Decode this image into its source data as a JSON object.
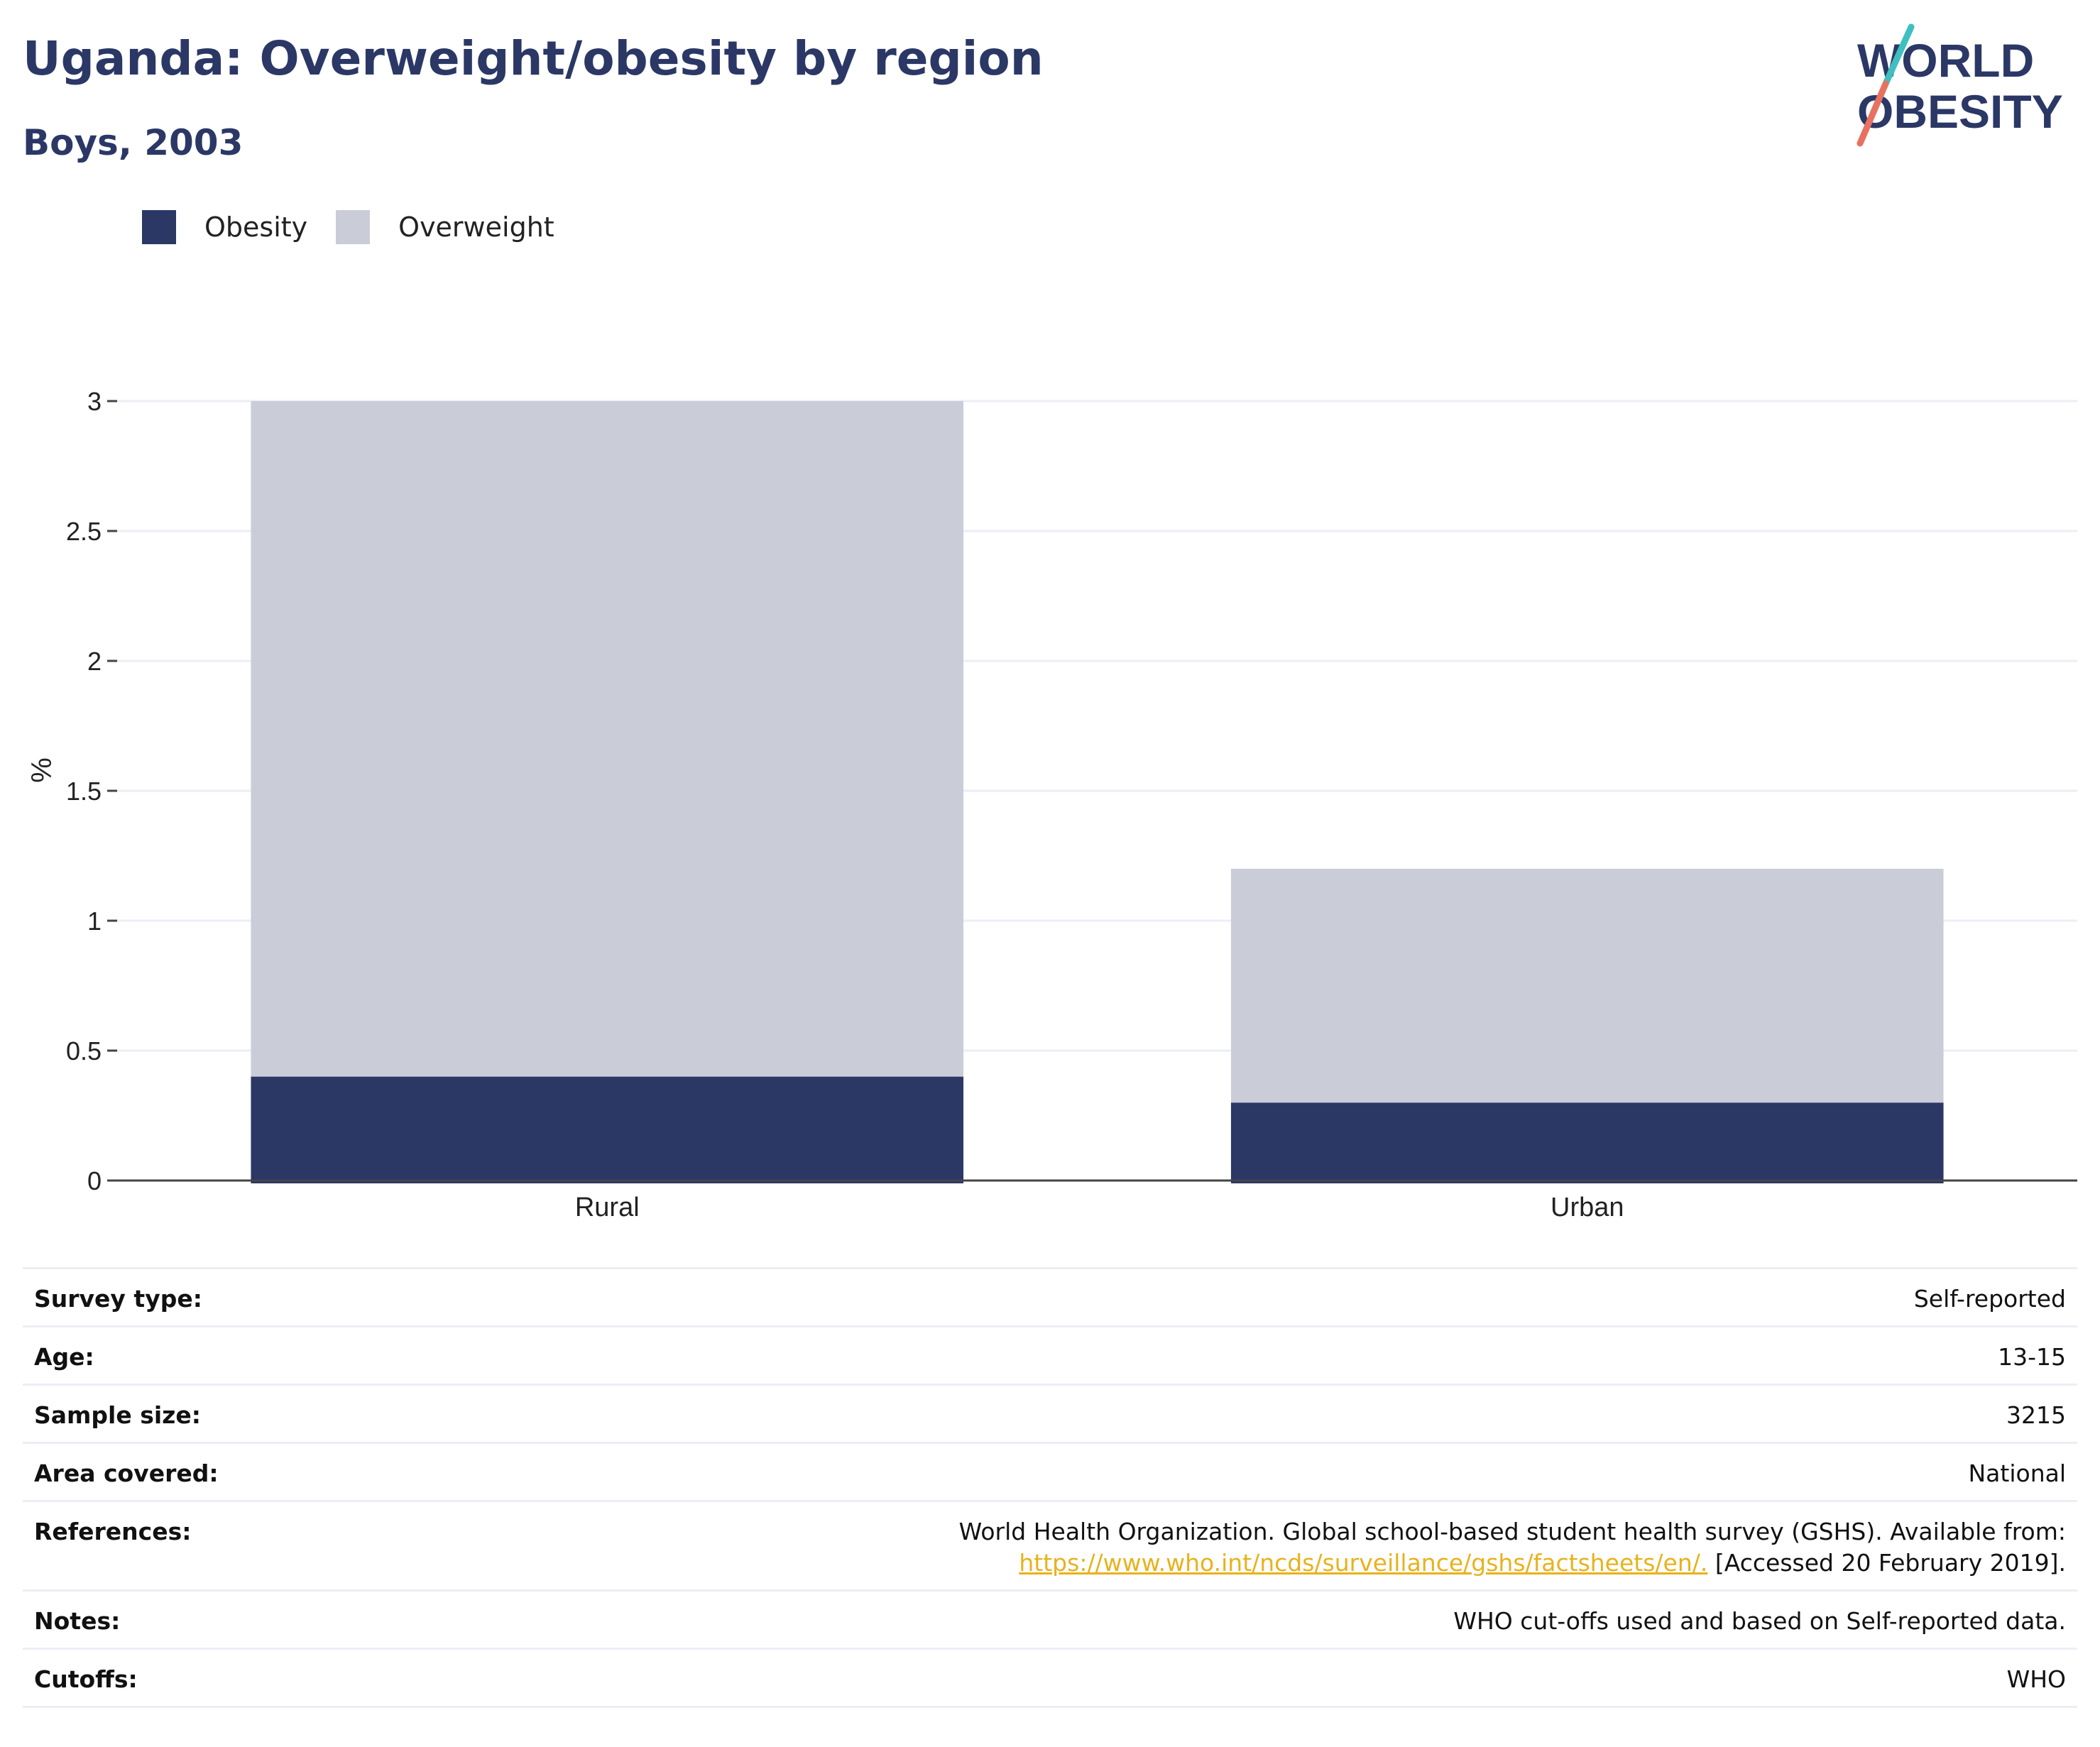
{
  "header": {
    "title": "Uganda: Overweight/obesity by region",
    "subtitle": "Boys, 2003"
  },
  "logo": {
    "line1": "WORLD",
    "line2": "OBESITY",
    "colors": {
      "text": "#2b3866",
      "slash_teal": "#3fbfbf",
      "slash_coral": "#e8715f"
    }
  },
  "colors": {
    "obesity": "#2b3866",
    "overweight": "#cacdd8",
    "grid": "#eceef5",
    "axis": "#444444"
  },
  "chart_data": {
    "type": "bar",
    "stacked": true,
    "categories": [
      "Rural",
      "Urban"
    ],
    "series": [
      {
        "name": "Obesity",
        "values": [
          0.4,
          0.3
        ]
      },
      {
        "name": "Overweight",
        "values": [
          2.6,
          0.9
        ]
      }
    ],
    "ylabel": "%",
    "ylim": [
      0,
      3
    ],
    "yticks": [
      0,
      0.5,
      1,
      1.5,
      2,
      2.5,
      3
    ],
    "ytick_labels": [
      "0",
      "0.5",
      "1",
      "1.5",
      "2",
      "2.5",
      "3"
    ],
    "grid": true,
    "legend_position": "top-left"
  },
  "info": {
    "survey_type": {
      "label": "Survey type:",
      "value": "Self-reported"
    },
    "age": {
      "label": "Age:",
      "value": "13-15"
    },
    "sample_size": {
      "label": "Sample size:",
      "value": "3215"
    },
    "area_covered": {
      "label": "Area covered:",
      "value": "National"
    },
    "references": {
      "label": "References:",
      "text1": "World Health Organization. Global school-based student health survey (GSHS). Available from:",
      "link": "https://www.who.int/ncds/surveillance/gshs/factsheets/en/.",
      "text2": " [Accessed 20 February 2019]."
    },
    "notes": {
      "label": "Notes:",
      "value": "WHO cut-offs used and based on Self-reported data."
    },
    "cutoffs": {
      "label": "Cutoffs:",
      "value": "WHO"
    }
  }
}
